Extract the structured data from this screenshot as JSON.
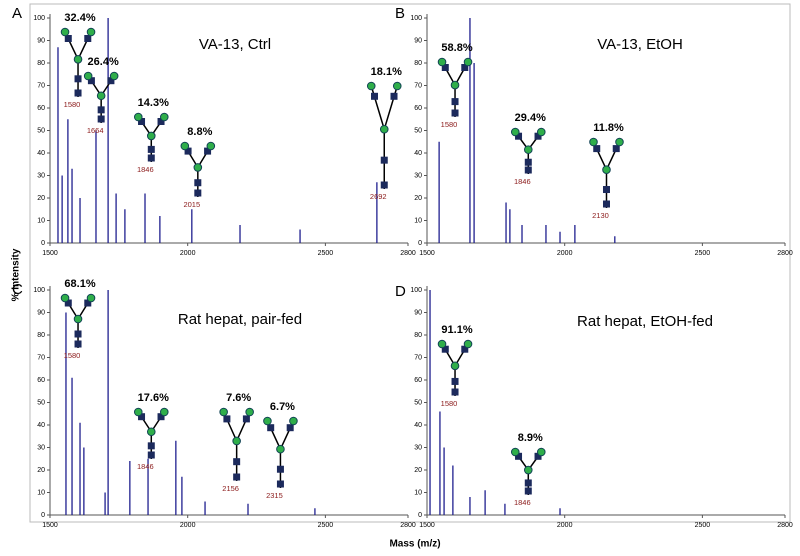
{
  "axis_labels": {
    "y": "% Intensity",
    "x": "Mass (m/z)"
  },
  "chart_data": [
    {
      "type": "stem",
      "panel": "A",
      "title": "VA-13, Ctrl",
      "color": "#1f1f8f",
      "x": [
        1529,
        1544,
        1565,
        1580,
        1609,
        1667,
        1711,
        1740,
        1772,
        1845,
        1899,
        2015,
        2190,
        2408,
        2687
      ],
      "values": [
        87,
        30,
        55,
        33,
        20,
        50,
        100,
        22,
        15,
        22,
        12,
        15,
        8,
        6,
        27
      ],
      "xlim": [
        1500,
        2800
      ],
      "xticks": [
        1500,
        2000,
        2500,
        2800
      ],
      "ylim": [
        0,
        100
      ],
      "yticks": [
        0,
        10,
        20,
        30,
        40,
        50,
        60,
        70,
        80,
        90,
        100
      ],
      "glycans": {
        "masses": [
          1580,
          1664,
          1846,
          2015,
          2692
        ],
        "values": [
          32.4,
          26.4,
          14.3,
          8.8,
          18.1
        ],
        "value_labels": [
          "32.4%",
          "26.4%",
          "14.3%",
          "8.8%",
          "18.1%"
        ]
      }
    },
    {
      "type": "stem",
      "panel": "B",
      "title": "VA-13, EtOH",
      "color": "#1f1f8f",
      "x": [
        1544,
        1656,
        1671,
        1787,
        1801,
        1845,
        1932,
        1983,
        2037,
        2182
      ],
      "values": [
        45,
        100,
        80,
        18,
        15,
        8,
        8,
        5,
        8,
        3
      ],
      "xlim": [
        1500,
        2800
      ],
      "xticks": [
        1500,
        2000,
        2500,
        2800
      ],
      "ylim": [
        0,
        100
      ],
      "yticks": [
        0,
        10,
        20,
        30,
        40,
        50,
        60,
        70,
        80,
        90,
        100
      ],
      "glycans": {
        "masses": [
          1580,
          1846,
          2130
        ],
        "values": [
          58.8,
          29.4,
          11.8
        ],
        "value_labels": [
          "58.8%",
          "29.4%",
          "11.8%"
        ]
      }
    },
    {
      "type": "stem",
      "panel": "C",
      "title": "Rat hepat, pair-fed",
      "color": "#1f1f8f",
      "x": [
        1558,
        1580,
        1609,
        1623,
        1700,
        1711,
        1790,
        1856,
        1957,
        1979,
        2063,
        2219,
        2462
      ],
      "values": [
        90,
        61,
        41,
        30,
        10,
        100,
        24,
        25,
        33,
        17,
        6,
        5,
        3
      ],
      "xlim": [
        1500,
        2800
      ],
      "xticks": [
        1500,
        2000,
        2500,
        2800
      ],
      "ylim": [
        0,
        100
      ],
      "yticks": [
        0,
        10,
        20,
        30,
        40,
        50,
        60,
        70,
        80,
        90,
        100
      ],
      "glycans": {
        "masses": [
          1580,
          1846,
          2156,
          2315
        ],
        "values": [
          68.1,
          17.6,
          7.6,
          6.7
        ],
        "value_labels": [
          "68.1%",
          "17.6%",
          "7.6%",
          "6.7%"
        ]
      }
    },
    {
      "type": "stem",
      "panel": "D",
      "title": "Rat hepat, EtOH-fed",
      "color": "#1f1f8f",
      "x": [
        1511,
        1547,
        1562,
        1594,
        1656,
        1711,
        1783,
        1983
      ],
      "values": [
        100,
        46,
        30,
        22,
        8,
        11,
        5,
        3
      ],
      "xlim": [
        1500,
        2800
      ],
      "xticks": [
        1500,
        2000,
        2500,
        2800
      ],
      "ylim": [
        0,
        100
      ],
      "yticks": [
        0,
        10,
        20,
        30,
        40,
        50,
        60,
        70,
        80,
        90,
        100
      ],
      "glycans": {
        "masses": [
          1580,
          1846
        ],
        "values": [
          91.1,
          8.9
        ],
        "value_labels": [
          "91.1%",
          "8.9%"
        ]
      }
    }
  ]
}
